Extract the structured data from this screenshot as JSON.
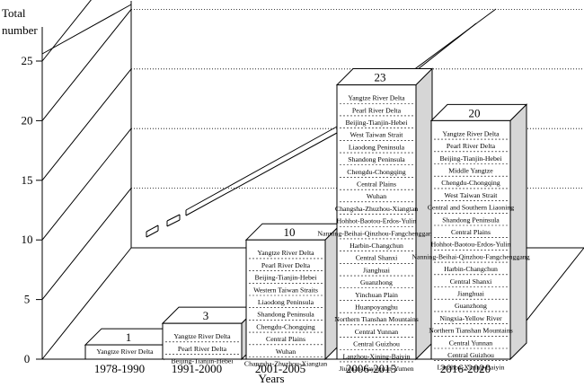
{
  "chart_data": {
    "type": "bar",
    "ylabel": "Total number",
    "xlabel": "Years",
    "ylim": [
      0,
      30
    ],
    "yticks": [
      0,
      5,
      10,
      15,
      20,
      25
    ],
    "categories": [
      "1978-1990",
      "1991-2000",
      "2001-2005",
      "2006-2015",
      "2016-2020"
    ],
    "values": [
      1,
      3,
      10,
      23,
      20
    ],
    "value_labels": [
      "1",
      "3",
      "10",
      "23",
      "20"
    ],
    "bar_contents": [
      [
        "Yangtze River Delta"
      ],
      [
        "Yangtze River Delta",
        "Pearl River Delta",
        "Beijing-Tianjin-Hebei"
      ],
      [
        "Yangtze River Delta",
        "Pearl River Delta",
        "Beijing-Tianjin-Hebei",
        "Western Taiwan Straits",
        "Liaodong Peninsula",
        "Shandong Peninsula",
        "Chengdu-Chongqing",
        "Central Plains",
        "Wuhan",
        "Changsha-Zhuzhou-Xiangtan"
      ],
      [
        "Yangtze River Delta",
        "Pearl River Delta",
        "Beijing-Tianjin-Hebei",
        "West Taiwan Strait",
        "Liaodong Peninsula",
        "Shandong Peninsula",
        "Chengdu-Chongqing",
        "Central Plains",
        "Wuhan",
        "Changsha-Zhuzhou-Xiangtan",
        "Hohhot-Baotou-Erdos-Yulin",
        "Nanning-Beihai-Qinzhou-Fangchenggang",
        "Harbin-Changchun",
        "Central Shanxi",
        "Jianghuai",
        "Guanzhong",
        "Yinchuan Plain",
        "Huanpoyanghu",
        "Northern Tianshan Mountains",
        "Central Yunnan",
        "Central Guizhou",
        "Lanzhou-Xining-Baiyin",
        "Jiuquan-Jiayuguan-Yumen"
      ],
      [
        "Yangtze River Delta",
        "Pearl River Delta",
        "Beijing-Tianjin-Hebei",
        "Middle Yangtze",
        "Chengdu-Chongqing",
        "West Taiwan Strait",
        "Central and Southern Liaoning",
        "Shandong Peninsula",
        "Central Plains",
        "Hohhot-Baotou-Erdos-Yulin",
        "Nanning-Beihai-Qinzhou-Fangchenggang",
        "Harbin-Changchun",
        "Central Shanxi",
        "Jianghuai",
        "Guanzhong",
        "Ningxia-Yellow River",
        "Northern Tianshan Mountains",
        "Central Yunnan",
        "Central Guizhou",
        "Lanzhou-Xining-Baiyin"
      ]
    ],
    "grid": true
  }
}
